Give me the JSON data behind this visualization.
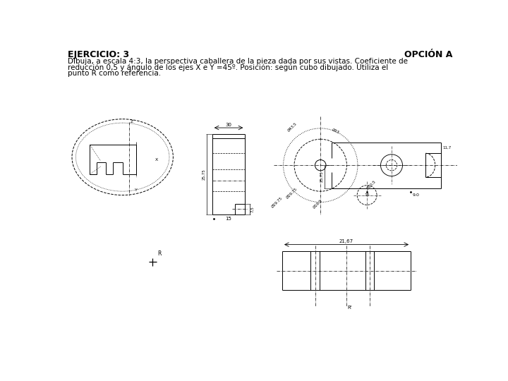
{
  "title_left": "EJERCICIO: 3",
  "title_right": "OPCIÓN A",
  "description": "Dibuja, a escala 4:3, la perspectiva caballera de la pieza dada por sus vistas. Coeficiente de\nreducción 0,5 y ángulo de los ejes X e Y =45º. Posición: según cubo dibujado. Utiliza el\npunto R como referencia.",
  "bg_color": "#ffffff",
  "line_color": "#000000",
  "font_size_title": 9,
  "font_size_desc": 7.5,
  "font_size_label": 5
}
